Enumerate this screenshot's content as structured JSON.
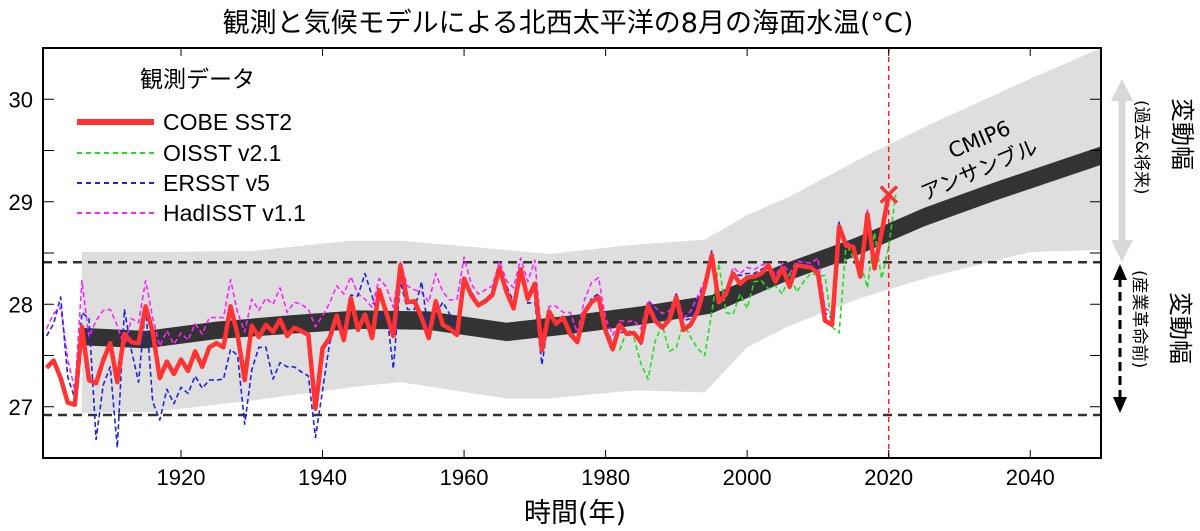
{
  "chart_data": {
    "type": "line",
    "title": "観測と気候モデルによる北西太平洋の8月の海面水温(°C)",
    "xlabel": "時間(年)",
    "ylabel": "",
    "xlim": [
      1900.5,
      2050
    ],
    "ylim": [
      26.5,
      30.5
    ],
    "x_ticks": [
      1920,
      1940,
      1960,
      1980,
      2000,
      2020,
      2040
    ],
    "x_tick_labels": [
      "1920",
      "1940",
      "1960",
      "1980",
      "2000",
      "2020",
      "2040"
    ],
    "y_ticks": [
      27,
      27.5,
      28,
      28.5,
      29,
      29.5,
      30
    ],
    "y_tick_labels": [
      "27",
      "",
      "28",
      "",
      "29",
      "",
      "30"
    ],
    "grid": false,
    "legend": {
      "title": "観測データ",
      "placement": "top-left",
      "entries": [
        "COBE SST2",
        "OISST v2.1",
        "ERSST v5",
        "HadISST v1.1"
      ]
    },
    "reference_lines": {
      "preindustrial_upper": 28.41,
      "preindustrial_lower": 26.92,
      "year_marker": 2020
    },
    "annotations": {
      "ensemble_label_line1": "CMIP6",
      "ensemble_label_line2": "アンサンブル",
      "range_all_label": "変動幅",
      "range_all_sublabel": "(過去&将来)",
      "range_pi_label": "変動幅",
      "range_pi_sublabel": "(産業革命前)"
    },
    "marker_2020": {
      "x": 2020,
      "y": 29.07,
      "symbol": "x"
    },
    "ensemble": {
      "name": "CMIP6 アンサンブル",
      "x": [
        1906,
        1915,
        1925,
        1935,
        1945,
        1955,
        1966,
        1975,
        1985,
        1995,
        2005,
        2015,
        2025,
        2035,
        2050
      ],
      "mean": [
        27.68,
        27.65,
        27.74,
        27.8,
        27.85,
        27.84,
        27.73,
        27.8,
        27.89,
        28.0,
        28.3,
        28.55,
        28.85,
        29.1,
        29.45
      ],
      "lower": [
        27.6,
        27.57,
        27.66,
        27.71,
        27.76,
        27.75,
        27.64,
        27.71,
        27.8,
        27.91,
        28.21,
        28.46,
        28.76,
        29.01,
        29.36
      ],
      "upper": [
        27.77,
        27.74,
        27.83,
        27.89,
        27.94,
        27.93,
        27.82,
        27.89,
        27.98,
        28.09,
        28.39,
        28.64,
        28.94,
        29.19,
        29.54
      ],
      "spread_x": [
        1906,
        1916,
        1930,
        1944,
        1951,
        1966,
        1972,
        1984,
        1994,
        2000,
        2006,
        2016,
        2026,
        2040,
        2050
      ],
      "spread_lower": [
        26.94,
        26.95,
        27.06,
        27.19,
        27.24,
        27.08,
        27.08,
        27.16,
        27.14,
        27.58,
        27.79,
        28.06,
        28.27,
        28.51,
        28.53
      ],
      "spread_upper": [
        28.51,
        28.51,
        28.52,
        28.62,
        28.62,
        28.53,
        28.49,
        28.58,
        28.63,
        28.87,
        29.05,
        29.42,
        29.76,
        30.2,
        30.5
      ]
    },
    "series": [
      {
        "name": "COBE SST2",
        "color": "#ff3333",
        "style": "solid",
        "x_start": 1901,
        "values": [
          27.38,
          27.45,
          27.28,
          27.04,
          27.02,
          27.78,
          27.26,
          27.23,
          27.45,
          27.62,
          27.24,
          27.71,
          27.63,
          27.62,
          27.98,
          27.73,
          27.28,
          27.44,
          27.32,
          27.46,
          27.35,
          27.54,
          27.39,
          27.58,
          27.62,
          27.58,
          27.98,
          27.7,
          27.26,
          27.79,
          27.68,
          27.8,
          27.73,
          27.85,
          27.69,
          27.77,
          27.74,
          27.7,
          26.98,
          27.57,
          27.67,
          27.89,
          27.65,
          28.06,
          27.75,
          27.9,
          27.67,
          28.14,
          27.92,
          27.69,
          28.38,
          28.02,
          28.03,
          27.87,
          27.67,
          28.03,
          27.8,
          27.76,
          27.7,
          28.25,
          28.09,
          27.99,
          28.03,
          28.09,
          28.35,
          28.12,
          27.96,
          28.34,
          28.05,
          28.2,
          27.55,
          27.93,
          27.81,
          27.87,
          27.71,
          27.63,
          27.92,
          28.02,
          28.07,
          27.74,
          27.56,
          27.8,
          27.71,
          27.72,
          27.63,
          27.99,
          27.84,
          27.77,
          27.85,
          28.07,
          27.75,
          27.8,
          27.93,
          28.17,
          28.48,
          28.02,
          28.1,
          28.3,
          28.2,
          28.26,
          28.27,
          28.3,
          28.38,
          28.22,
          28.35,
          28.17,
          28.38,
          28.37,
          28.36,
          28.3,
          27.84,
          27.8,
          28.76,
          28.57,
          28.56,
          28.27,
          28.88,
          28.35,
          28.7,
          29.07
        ]
      },
      {
        "name": "OISST v2.1",
        "color": "#22dd22",
        "style": "dashed",
        "x_start": 1982,
        "values": [
          27.55,
          27.75,
          27.67,
          27.42,
          27.27,
          27.64,
          27.8,
          27.54,
          27.58,
          27.82,
          27.68,
          27.57,
          27.5,
          27.92,
          28.4,
          27.92,
          27.9,
          28.1,
          27.96,
          28.22,
          28.23,
          28.15,
          28.18,
          28.1,
          28.3,
          28.12,
          28.22,
          28.3,
          28.28,
          28.28,
          27.78,
          27.72,
          28.6,
          28.45,
          28.4,
          28.16,
          28.7,
          28.25,
          28.56,
          29.07
        ]
      },
      {
        "name": "ERSST v5",
        "color": "#2222dd",
        "style": "dashed",
        "x_start": 1901,
        "values": [
          27.69,
          27.81,
          28.07,
          27.29,
          27.08,
          27.92,
          27.86,
          26.68,
          27.21,
          27.39,
          26.6,
          27.95,
          27.55,
          27.24,
          27.98,
          27.05,
          26.87,
          27.17,
          27.03,
          27.19,
          27.13,
          27.3,
          27.18,
          27.26,
          27.26,
          27.27,
          27.56,
          27.5,
          26.83,
          27.36,
          27.58,
          27.58,
          27.27,
          27.43,
          27.39,
          27.39,
          27.34,
          27.3,
          26.7,
          27.16,
          27.62,
          27.84,
          27.78,
          28.09,
          28.08,
          28.3,
          28.08,
          27.86,
          27.94,
          27.37,
          28.22,
          27.95,
          27.95,
          28.22,
          27.71,
          27.9,
          28.02,
          27.9,
          27.73,
          28.18,
          28.13,
          28.0,
          28.05,
          28.11,
          28.37,
          28.18,
          28.02,
          28.28,
          28.01,
          28.02,
          27.41,
          27.88,
          27.82,
          27.84,
          27.74,
          27.65,
          27.88,
          28.06,
          28.1,
          27.78,
          27.61,
          27.72,
          27.74,
          27.72,
          27.61,
          28.03,
          27.95,
          27.77,
          27.9,
          28.1,
          27.84,
          27.86,
          28.04,
          28.2,
          28.52,
          28.05,
          28.1,
          28.3,
          28.28,
          28.3,
          28.3,
          28.34,
          28.38,
          28.26,
          28.38,
          28.24,
          28.4,
          28.4,
          28.38,
          28.34,
          27.92,
          27.86,
          28.8,
          28.58,
          28.55,
          28.3,
          28.9,
          28.4,
          28.72,
          29.05
        ]
      },
      {
        "name": "HadISST v1.1",
        "color": "#ff22ff",
        "style": "dashed",
        "x_start": 1901,
        "values": [
          27.76,
          27.91,
          27.97,
          27.46,
          27.16,
          28.23,
          27.68,
          27.84,
          27.94,
          27.95,
          27.79,
          27.58,
          27.86,
          27.82,
          28.23,
          27.87,
          27.59,
          27.74,
          27.61,
          27.72,
          27.65,
          27.81,
          27.71,
          27.87,
          27.87,
          27.87,
          28.24,
          27.92,
          27.73,
          28.05,
          27.94,
          28.06,
          28.0,
          28.16,
          27.92,
          28.02,
          28.0,
          27.95,
          27.78,
          27.89,
          28.01,
          28.18,
          28.1,
          28.27,
          28.1,
          28.05,
          27.97,
          28.25,
          28.17,
          27.97,
          28.41,
          28.18,
          28.14,
          28.12,
          28.02,
          28.3,
          28.12,
          28.04,
          28.05,
          28.46,
          28.2,
          28.1,
          28.14,
          28.18,
          28.42,
          28.23,
          28.16,
          28.45,
          28.22,
          28.43,
          27.66,
          27.98,
          27.98,
          27.92,
          27.92,
          27.72,
          28.04,
          28.21,
          28.26,
          27.86,
          27.7,
          27.84,
          27.83,
          27.84,
          27.76,
          28.04,
          27.97,
          27.91,
          27.93,
          28.11,
          27.86,
          27.93,
          28.08,
          28.23,
          28.5,
          28.08,
          28.12,
          28.36,
          28.3,
          28.36,
          28.34,
          28.38,
          28.4,
          28.28,
          28.4,
          28.3,
          28.42,
          28.41,
          28.4,
          28.45,
          27.96,
          27.92,
          28.8,
          28.6,
          28.58,
          28.35,
          28.92,
          28.42,
          28.74,
          29.06
        ]
      }
    ]
  }
}
